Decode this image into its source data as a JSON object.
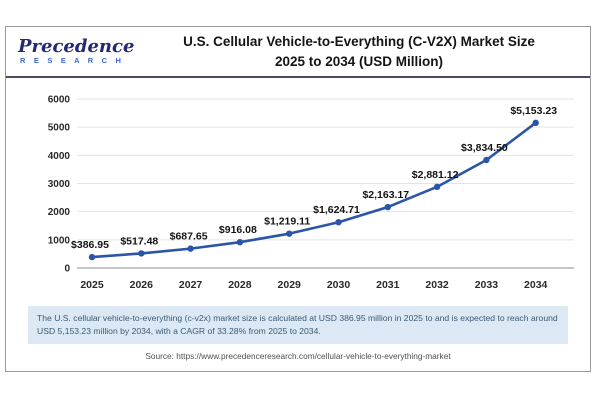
{
  "logo": {
    "name": "Precedence",
    "subtitle": "R E S E A R C H"
  },
  "header": {
    "title_line1": "U.S. Cellular Vehicle-to-Everything (C-V2X) Market Size",
    "title_line2": "2025 to 2034 (USD Million)"
  },
  "chart_data": {
    "type": "line",
    "title": "U.S. Cellular Vehicle-to-Everything (C-V2X) Market Size 2025 to 2034 (USD Million)",
    "categories": [
      "2025",
      "2026",
      "2027",
      "2028",
      "2029",
      "2030",
      "2031",
      "2032",
      "2033",
      "2034"
    ],
    "values": [
      386.95,
      517.48,
      687.65,
      916.08,
      1219.11,
      1624.71,
      2163.17,
      2881.12,
      3834.5,
      5153.23
    ],
    "value_labels": [
      "$386.95",
      "$517.48",
      "$687.65",
      "$916.08",
      "$1,219.11",
      "$1,624.71",
      "$2,163.17",
      "$2,881.12",
      "$3,834.50",
      "$5,153.23"
    ],
    "xlabel": "",
    "ylabel": "",
    "ylim": [
      0,
      6000
    ],
    "yticks": [
      0,
      1000,
      2000,
      3000,
      4000,
      5000,
      6000
    ],
    "grid": "horizontal",
    "legend": "none",
    "line_color": "#2b55a7",
    "marker": "circle"
  },
  "footer": {
    "note": "The U.S. cellular vehicle-to-everything (c-v2x) market size is calculated at USD 386.95 million in 2025 to and is expected to reach around USD 5,153.23 million by 2034, with a CAGR of 33.28% from 2025 to 2034.",
    "source": "Source: https://www.precedenceresearch.com/cellular-vehicle-to-everything-market"
  },
  "colors": {
    "accent_blue": "#2b55a7",
    "band_bg": "#dce8f4",
    "band_text": "#3d5a73",
    "header_divider": "#4a4a63",
    "card_border": "#9a9a9a",
    "grid_line": "#e4e4e4",
    "axis_line": "#b3b3b3"
  }
}
